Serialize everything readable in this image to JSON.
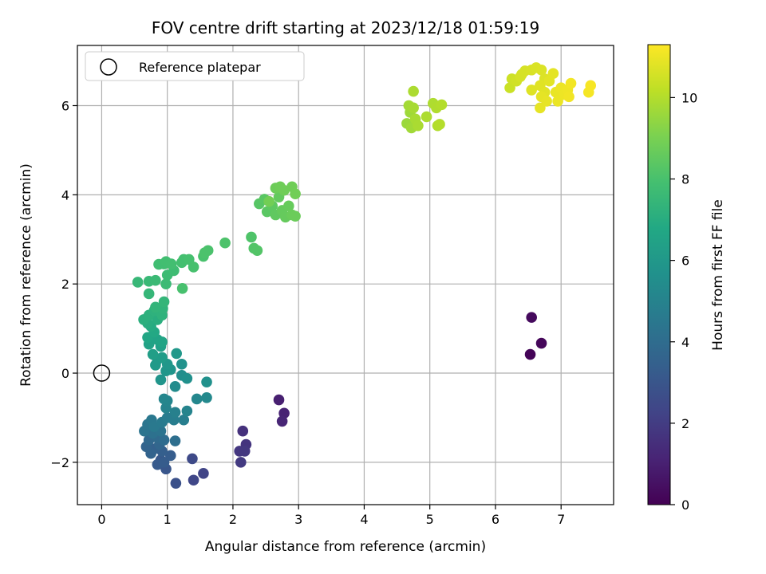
{
  "chart_data": {
    "type": "scatter",
    "title": "FOV centre drift starting at 2023/12/18 01:59:19",
    "xlabel": "Angular distance from reference (arcmin)",
    "ylabel": "Rotation from reference (arcmin)",
    "xlim": [
      -0.37,
      7.8
    ],
    "ylim": [
      -2.95,
      7.35
    ],
    "xticks": [
      0,
      1,
      2,
      3,
      4,
      5,
      6,
      7
    ],
    "yticks": [
      -2,
      0,
      2,
      4,
      6
    ],
    "xtick_labels": [
      "0",
      "1",
      "2",
      "3",
      "4",
      "5",
      "6",
      "7"
    ],
    "ytick_labels": [
      "−2",
      "0",
      "2",
      "4",
      "6"
    ],
    "grid": true,
    "legend": {
      "position": "top-left",
      "entries": [
        "Reference platepar"
      ]
    },
    "reference_point": {
      "x": 0,
      "y": 0
    },
    "colorbar": {
      "label": "Hours from first FF file",
      "range": [
        0,
        11.3
      ],
      "ticks": [
        0,
        2,
        4,
        6,
        8,
        10
      ],
      "tick_labels": [
        "0",
        "2",
        "4",
        "6",
        "8",
        "10"
      ],
      "colormap": "viridis"
    },
    "points": [
      [
        6.53,
        0.42,
        0.1
      ],
      [
        6.7,
        0.67,
        0.2
      ],
      [
        6.55,
        1.25,
        0.3
      ],
      [
        2.7,
        -0.6,
        1.0
      ],
      [
        2.78,
        -0.9,
        1.1
      ],
      [
        2.75,
        -1.08,
        1.2
      ],
      [
        2.15,
        -1.3,
        1.6
      ],
      [
        2.2,
        -1.6,
        1.7
      ],
      [
        2.1,
        -1.75,
        1.8
      ],
      [
        2.18,
        -1.75,
        1.85
      ],
      [
        2.12,
        -2.0,
        1.9
      ],
      [
        1.55,
        -2.25,
        2.3
      ],
      [
        1.4,
        -2.4,
        2.4
      ],
      [
        1.38,
        -1.92,
        2.5
      ],
      [
        1.13,
        -2.47,
        2.8
      ],
      [
        0.98,
        -2.15,
        3.0
      ],
      [
        0.9,
        -1.95,
        3.1
      ],
      [
        0.85,
        -2.05,
        3.2
      ],
      [
        0.95,
        -2.0,
        3.25
      ],
      [
        1.05,
        -1.85,
        3.3
      ],
      [
        0.92,
        -1.75,
        3.4
      ],
      [
        0.8,
        -1.7,
        3.5
      ],
      [
        0.75,
        -1.8,
        3.55
      ],
      [
        0.68,
        -1.65,
        3.6
      ],
      [
        0.88,
        -1.6,
        3.7
      ],
      [
        0.72,
        -1.5,
        3.8
      ],
      [
        0.85,
        -1.45,
        3.9
      ],
      [
        0.95,
        -1.5,
        4.0
      ],
      [
        1.12,
        -1.52,
        4.1
      ],
      [
        0.78,
        -1.35,
        4.2
      ],
      [
        0.9,
        -1.3,
        4.3
      ],
      [
        0.65,
        -1.3,
        4.35
      ],
      [
        0.7,
        -1.15,
        4.4
      ],
      [
        0.76,
        -1.05,
        4.5
      ],
      [
        0.8,
        -1.2,
        4.55
      ],
      [
        0.92,
        -1.1,
        4.6
      ],
      [
        1.0,
        -1.0,
        4.7
      ],
      [
        1.1,
        -1.05,
        4.75
      ],
      [
        1.25,
        -1.05,
        4.8
      ],
      [
        1.12,
        -0.88,
        4.9
      ],
      [
        0.98,
        -0.78,
        5.0
      ],
      [
        1.3,
        -0.85,
        5.05
      ],
      [
        1.0,
        -0.62,
        5.1
      ],
      [
        0.95,
        -0.58,
        5.15
      ],
      [
        1.45,
        -0.58,
        5.2
      ],
      [
        1.6,
        -0.55,
        5.3
      ],
      [
        1.12,
        -0.3,
        5.4
      ],
      [
        1.22,
        -0.05,
        5.5
      ],
      [
        1.3,
        -0.12,
        5.6
      ],
      [
        1.6,
        -0.2,
        5.65
      ],
      [
        1.22,
        0.2,
        5.7
      ],
      [
        1.05,
        0.08,
        5.8
      ],
      [
        0.9,
        -0.15,
        5.85
      ],
      [
        0.98,
        0.05,
        5.9
      ],
      [
        1.0,
        0.2,
        5.95
      ],
      [
        1.14,
        0.44,
        6.0
      ],
      [
        0.85,
        0.3,
        6.05
      ],
      [
        0.82,
        0.18,
        6.1
      ],
      [
        0.92,
        0.35,
        6.2
      ],
      [
        0.78,
        0.42,
        6.3
      ],
      [
        0.9,
        0.6,
        6.4
      ],
      [
        0.72,
        0.65,
        6.5
      ],
      [
        0.85,
        0.75,
        6.55
      ],
      [
        0.92,
        0.7,
        6.6
      ],
      [
        0.7,
        0.8,
        6.7
      ],
      [
        0.8,
        0.92,
        6.8
      ],
      [
        0.75,
        1.05,
        6.9
      ],
      [
        0.7,
        1.12,
        7.0
      ],
      [
        0.85,
        1.2,
        7.05
      ],
      [
        0.64,
        1.2,
        7.1
      ],
      [
        0.72,
        1.3,
        7.15
      ],
      [
        0.8,
        1.4,
        7.2
      ],
      [
        0.92,
        1.3,
        7.25
      ],
      [
        0.93,
        1.45,
        7.3
      ],
      [
        0.82,
        1.48,
        7.35
      ],
      [
        0.95,
        1.6,
        7.4
      ],
      [
        0.72,
        1.78,
        7.45
      ],
      [
        0.55,
        2.04,
        7.5
      ],
      [
        0.72,
        2.06,
        7.55
      ],
      [
        0.82,
        2.08,
        7.6
      ],
      [
        0.98,
        2.0,
        7.65
      ],
      [
        1.0,
        2.2,
        7.7
      ],
      [
        1.1,
        2.3,
        7.75
      ],
      [
        0.87,
        2.44,
        7.8
      ],
      [
        0.95,
        2.45,
        7.82
      ],
      [
        0.98,
        2.5,
        7.85
      ],
      [
        1.06,
        2.45,
        7.88
      ],
      [
        1.22,
        2.48,
        7.9
      ],
      [
        1.25,
        2.55,
        7.92
      ],
      [
        1.33,
        2.55,
        7.95
      ],
      [
        1.4,
        2.38,
        7.97
      ],
      [
        1.23,
        1.9,
        8.0
      ],
      [
        1.55,
        2.62,
        8.02
      ],
      [
        1.62,
        2.75,
        8.05
      ],
      [
        1.57,
        2.7,
        8.07
      ],
      [
        1.88,
        2.92,
        8.1
      ],
      [
        2.28,
        3.05,
        8.15
      ],
      [
        2.32,
        2.8,
        8.2
      ],
      [
        2.37,
        2.75,
        8.22
      ],
      [
        2.4,
        3.8,
        8.3
      ],
      [
        2.48,
        3.9,
        8.35
      ],
      [
        2.52,
        3.62,
        8.4
      ],
      [
        2.6,
        3.75,
        8.45
      ],
      [
        2.65,
        3.55,
        8.5
      ],
      [
        2.7,
        3.95,
        8.55
      ],
      [
        2.75,
        3.65,
        8.6
      ],
      [
        2.8,
        3.5,
        8.62
      ],
      [
        2.85,
        3.75,
        8.65
      ],
      [
        2.9,
        3.55,
        8.7
      ],
      [
        2.95,
        3.52,
        8.72
      ],
      [
        2.65,
        4.15,
        8.75
      ],
      [
        2.72,
        4.18,
        8.78
      ],
      [
        2.78,
        4.1,
        8.8
      ],
      [
        2.9,
        4.18,
        8.82
      ],
      [
        2.95,
        4.02,
        8.85
      ],
      [
        2.55,
        3.85,
        8.88
      ],
      [
        4.65,
        5.6,
        9.6
      ],
      [
        4.7,
        5.85,
        9.65
      ],
      [
        4.72,
        5.5,
        9.7
      ],
      [
        4.68,
        6.0,
        9.75
      ],
      [
        4.75,
        5.95,
        9.8
      ],
      [
        4.78,
        5.7,
        9.82
      ],
      [
        4.82,
        5.55,
        9.85
      ],
      [
        4.75,
        6.32,
        9.88
      ],
      [
        4.95,
        5.75,
        9.9
      ],
      [
        5.05,
        6.05,
        9.92
      ],
      [
        5.1,
        5.95,
        9.95
      ],
      [
        5.12,
        5.55,
        9.97
      ],
      [
        5.18,
        6.02,
        10.0
      ],
      [
        5.15,
        5.58,
        10.02
      ],
      [
        6.22,
        6.4,
        10.4
      ],
      [
        6.25,
        6.6,
        10.45
      ],
      [
        6.32,
        6.55,
        10.5
      ],
      [
        6.4,
        6.7,
        10.55
      ],
      [
        6.38,
        6.65,
        10.6
      ],
      [
        6.45,
        6.78,
        10.62
      ],
      [
        6.55,
        6.8,
        10.65
      ],
      [
        6.62,
        6.85,
        10.68
      ],
      [
        6.7,
        6.8,
        10.7
      ],
      [
        6.75,
        6.6,
        10.72
      ],
      [
        6.55,
        6.35,
        10.75
      ],
      [
        6.68,
        6.45,
        10.78
      ],
      [
        6.75,
        6.3,
        10.8
      ],
      [
        6.82,
        6.55,
        10.82
      ],
      [
        6.88,
        6.72,
        10.85
      ],
      [
        6.7,
        6.2,
        10.88
      ],
      [
        6.68,
        5.95,
        10.9
      ],
      [
        6.78,
        6.1,
        10.92
      ],
      [
        6.92,
        6.3,
        10.95
      ],
      [
        6.95,
        6.1,
        10.98
      ],
      [
        7.0,
        6.4,
        11.0
      ],
      [
        7.05,
        6.25,
        11.02
      ],
      [
        7.1,
        6.35,
        11.05
      ],
      [
        7.12,
        6.2,
        11.08
      ],
      [
        7.15,
        6.5,
        11.1
      ],
      [
        7.42,
        6.3,
        11.15
      ],
      [
        7.45,
        6.45,
        11.2
      ]
    ]
  }
}
